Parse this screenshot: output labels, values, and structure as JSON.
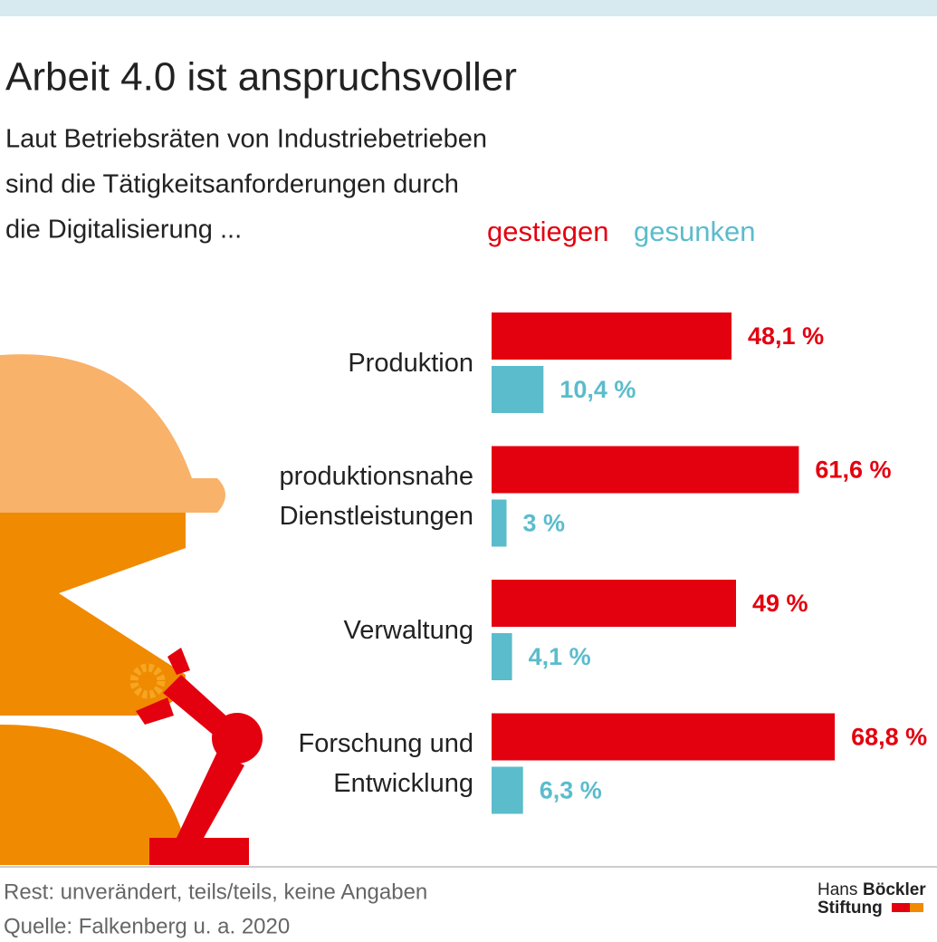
{
  "chart_data": {
    "type": "hbar",
    "title": "Arbeit 4.0 ist anspruchsvoller",
    "subtitle": [
      "Laut Betriebsräten von Industriebetrieben",
      "sind die Tätigkeitsanforderungen durch",
      "die Digitalisierung ..."
    ],
    "categories": [
      "Produktion",
      "produktionsnahe Dienstleistungen",
      "Verwaltung",
      "Forschung und Entwicklung"
    ],
    "series": [
      {
        "name": "gestiegen",
        "color": "#e3000f",
        "values": [
          48.1,
          61.6,
          49,
          68.8
        ],
        "value_labels": [
          "48,1 %",
          "61,6 %",
          "49 %",
          "68,8 %"
        ]
      },
      {
        "name": "gesunken",
        "color": "#5bbccc",
        "values": [
          10.4,
          3,
          4.1,
          6.3
        ],
        "value_labels": [
          "10,4 %",
          "3 %",
          "4,1 %",
          "6,3 %"
        ]
      }
    ],
    "notes": [
      "Rest: unverändert, teils/teils, keine Angaben",
      "Quelle: Falkenberg u. a. 2020"
    ],
    "brand": [
      "Hans",
      "Böckler",
      "Stiftung"
    ]
  }
}
